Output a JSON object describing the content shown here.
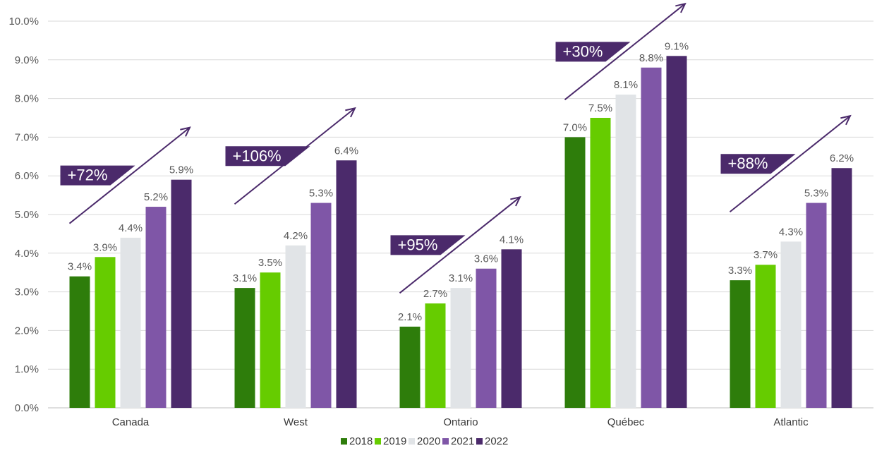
{
  "chart_data": {
    "type": "bar",
    "categories": [
      "Canada",
      "West",
      "Ontario",
      "Québec",
      "Atlantic"
    ],
    "series": [
      {
        "name": "2018",
        "values": [
          3.4,
          3.1,
          2.1,
          7.0,
          3.3
        ]
      },
      {
        "name": "2019",
        "values": [
          3.9,
          3.5,
          2.7,
          7.5,
          3.7
        ]
      },
      {
        "name": "2020",
        "values": [
          4.4,
          4.2,
          3.1,
          8.1,
          4.3
        ]
      },
      {
        "name": "2021",
        "values": [
          5.2,
          5.3,
          3.6,
          8.8,
          5.3
        ]
      },
      {
        "name": "2022",
        "values": [
          5.9,
          6.4,
          4.1,
          9.1,
          6.2
        ]
      }
    ],
    "data_labels": [
      [
        "3.4%",
        "3.9%",
        "4.4%",
        "5.2%",
        "5.9%"
      ],
      [
        "3.1%",
        "3.5%",
        "4.2%",
        "5.3%",
        "6.4%"
      ],
      [
        "2.1%",
        "2.7%",
        "3.1%",
        "3.6%",
        "4.1%"
      ],
      [
        "7.0%",
        "7.5%",
        "8.1%",
        "8.8%",
        "9.1%"
      ],
      [
        "3.3%",
        "3.7%",
        "4.3%",
        "5.3%",
        "6.2%"
      ]
    ],
    "growth_annotations": [
      "+72%",
      "+106%",
      "+95%",
      "+30%",
      "+88%"
    ],
    "ylim": [
      0,
      10
    ],
    "yticks": [
      "0.0%",
      "1.0%",
      "2.0%",
      "3.0%",
      "4.0%",
      "5.0%",
      "6.0%",
      "7.0%",
      "8.0%",
      "9.0%",
      "10.0%"
    ],
    "grid": true,
    "legend_position": "bottom",
    "colors": [
      "#2e7d0b",
      "#66cc00",
      "#e1e4e7",
      "#7f56a7",
      "#4b2a6b"
    ],
    "annotation_color": "#4b2a6b"
  }
}
